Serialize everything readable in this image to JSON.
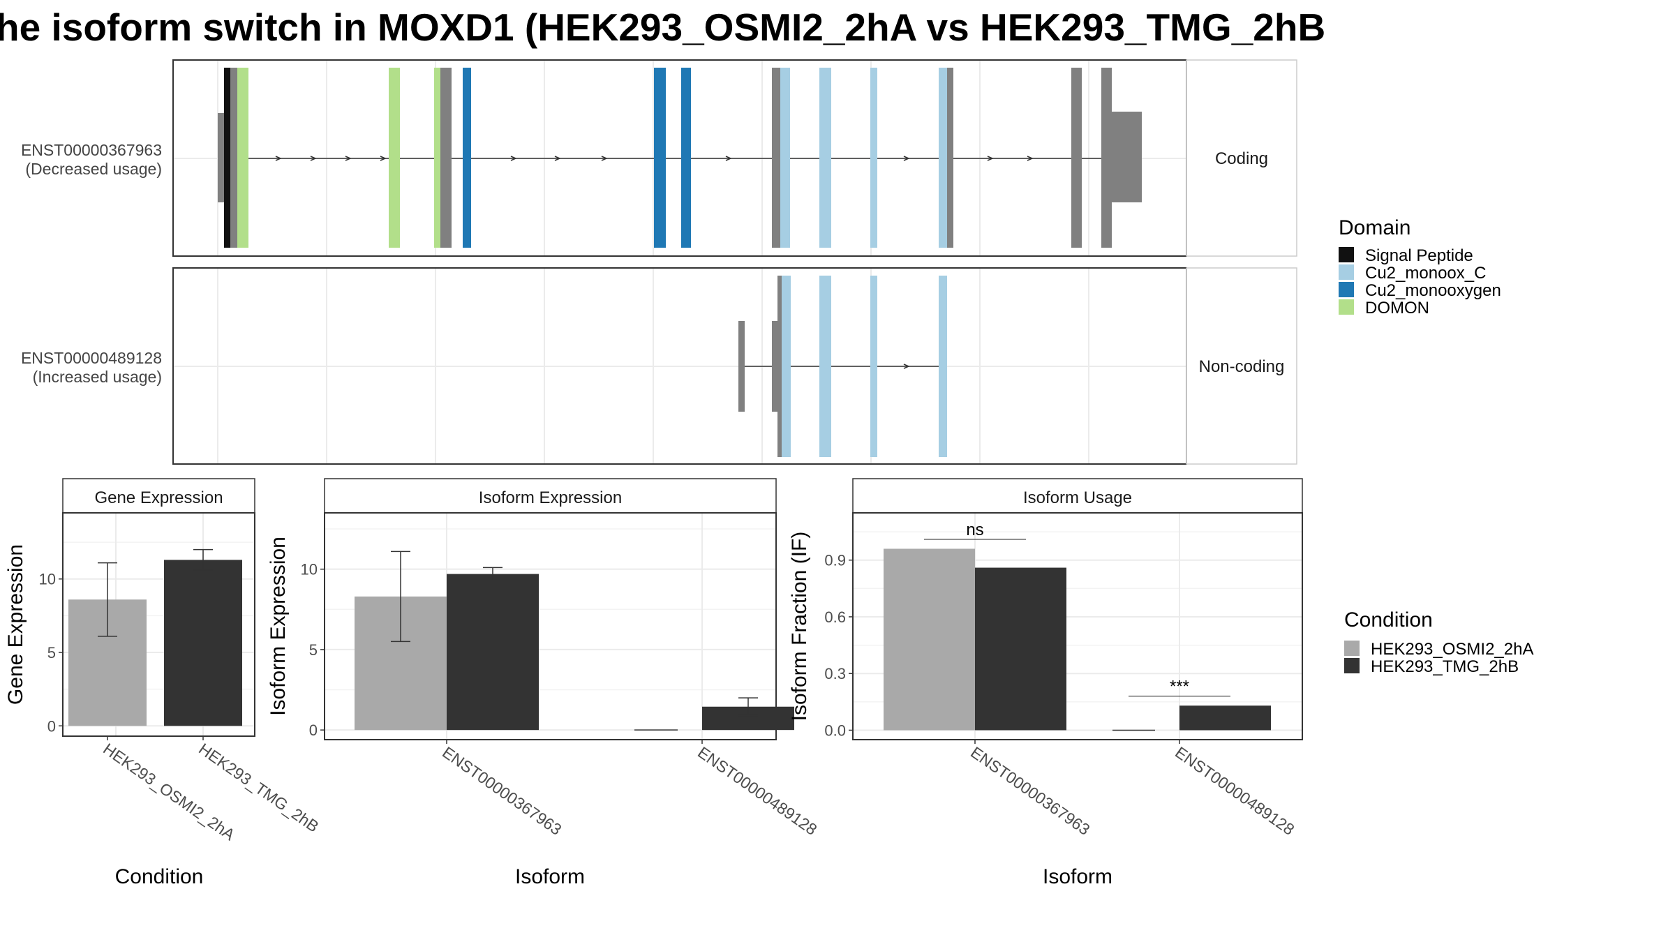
{
  "title": "he isoform switch in MOXD1 (HEK293_OSMI2_2hA vs HEK293_TMG_2hB",
  "colors": {
    "signal_peptide": "#111111",
    "cu2_monoox_c": "#a6cee3",
    "cu2_monooxygen": "#1f78b4",
    "domon": "#b2df8a",
    "exon": "#808080",
    "cond_a": "#a9a9a9",
    "cond_b": "#333333"
  },
  "structure": {
    "transcripts": [
      {
        "label": "ENST00000367963",
        "usage": "(Decreased usage)",
        "facet": "Coding"
      },
      {
        "label": "ENST00000489128",
        "usage": "(Increased usage)",
        "facet": "Non-coding"
      }
    ],
    "domain_legend": {
      "title": "Domain",
      "entries": [
        "Signal Peptide",
        "Cu2_monoox_C",
        "Cu2_monooxygen",
        "DOMON"
      ]
    }
  },
  "condition_legend": {
    "title": "Condition",
    "entries": [
      "HEK293_OSMI2_2hA",
      "HEK293_TMG_2hB"
    ]
  },
  "chart_data": [
    {
      "type": "bar",
      "title": "Gene Expression",
      "xlabel": "Condition",
      "ylabel": "Gene Expression",
      "categories": [
        "HEK293_OSMI2_2hA",
        "HEK293_TMG_2hB"
      ],
      "values": [
        8.6,
        11.3
      ],
      "error_low": [
        6.1,
        10.6
      ],
      "error_high": [
        11.1,
        12.0
      ],
      "ylim": [
        -0.7,
        14.5
      ],
      "yticks": [
        "0",
        "5",
        "10"
      ],
      "grid": true
    },
    {
      "type": "bar",
      "title": "Isoform Expression",
      "xlabel": "Isoform",
      "ylabel": "Isoform Expression",
      "categories": [
        "ENST00000367963",
        "ENST00000489128"
      ],
      "series": [
        {
          "name": "HEK293_OSMI2_2hA",
          "values": [
            8.3,
            0.0
          ],
          "error_low": [
            5.5,
            0.0
          ],
          "error_high": [
            11.1,
            0.0
          ]
        },
        {
          "name": "HEK293_TMG_2hB",
          "values": [
            9.7,
            1.45
          ],
          "error_low": [
            9.3,
            0.9
          ],
          "error_high": [
            10.1,
            2.0
          ]
        }
      ],
      "ylim": [
        -0.6,
        13.5
      ],
      "yticks": [
        "0",
        "5",
        "10"
      ],
      "grid": true
    },
    {
      "type": "bar",
      "title": "Isoform Usage",
      "xlabel": "Isoform",
      "ylabel": "Isoform Fraction (IF)",
      "categories": [
        "ENST00000367963",
        "ENST00000489128"
      ],
      "series": [
        {
          "name": "HEK293_OSMI2_2hA",
          "values": [
            0.96,
            0.0
          ]
        },
        {
          "name": "HEK293_TMG_2hB",
          "values": [
            0.86,
            0.13
          ]
        }
      ],
      "significance": [
        "ns",
        "***"
      ],
      "ylim": [
        -0.05,
        1.15
      ],
      "yticks": [
        "0.0",
        "0.3",
        "0.6",
        "0.9"
      ],
      "grid": true
    }
  ]
}
